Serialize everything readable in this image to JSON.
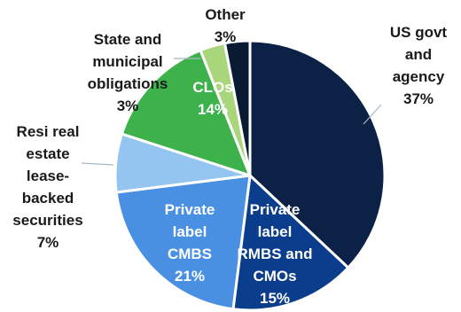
{
  "chart_data": {
    "type": "pie",
    "title": "",
    "start_angle_deg": 0,
    "direction": "clockwise",
    "slices": [
      {
        "name": "US govt and agency",
        "value": 37,
        "value_label": "37%",
        "color": "#0b2146",
        "label_lines": [
          "US govt",
          "and",
          "agency",
          "37%"
        ]
      },
      {
        "name": "Private label RMBS and CMOs",
        "value": 15,
        "value_label": "15%",
        "color": "#0a3d8c",
        "label_lines": [
          "Private",
          "label",
          "RMBS and",
          "CMOs",
          "15%"
        ]
      },
      {
        "name": "Private label CMBS",
        "value": 21,
        "value_label": "21%",
        "color": "#4a90e2",
        "label_lines": [
          "Private",
          "label",
          "CMBS",
          "21%"
        ]
      },
      {
        "name": "Resi real estate lease-backed securities",
        "value": 7,
        "value_label": "7%",
        "color": "#93c5f0",
        "label_lines": [
          "Resi real",
          "estate",
          "lease-",
          "backed",
          "securities",
          "7%"
        ]
      },
      {
        "name": "CLOs",
        "value": 14,
        "value_label": "14%",
        "color": "#3db24b",
        "label_lines": [
          "CLOs",
          "14%"
        ]
      },
      {
        "name": "State and municipal obligations",
        "value": 3,
        "value_label": "3%",
        "color": "#a9d67a",
        "label_lines": [
          "State and",
          "municipal",
          "obligations",
          "3%"
        ]
      },
      {
        "name": "Other",
        "value": 3,
        "value_label": "3%",
        "color": "#0a1a33",
        "label_lines": [
          "Other",
          "3%"
        ]
      }
    ]
  }
}
